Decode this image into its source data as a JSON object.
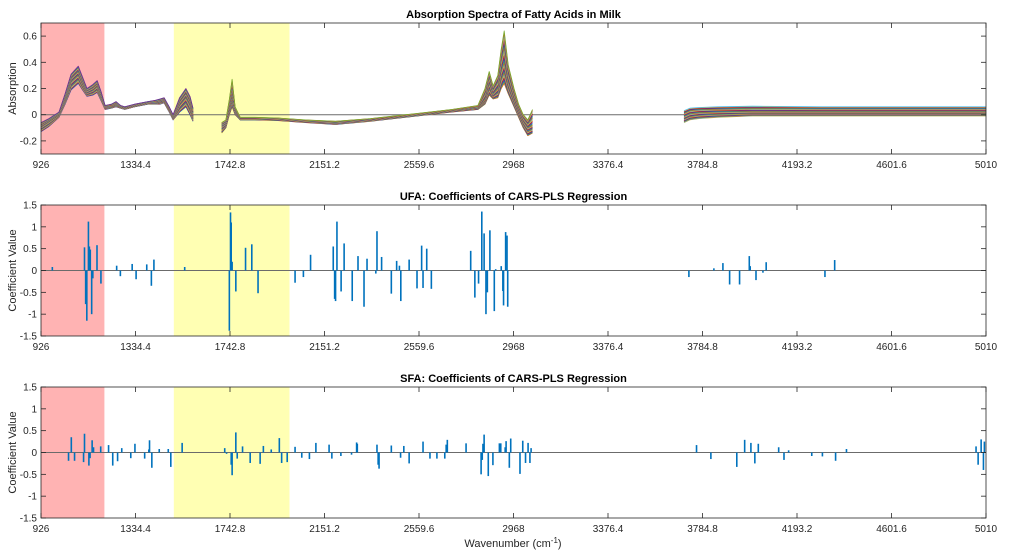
{
  "figure": {
    "xlabel": "Wavenumber (cm",
    "xlabel_sup": "-1",
    "xlabel_end": ")"
  },
  "chart_data": [
    {
      "type": "line",
      "title": "Absorption Spectra of Fatty Acids in Milk",
      "xlabel": "",
      "ylabel": "Absorption",
      "xlim": [
        926,
        5010
      ],
      "ylim": [
        -0.3,
        0.7
      ],
      "xticks": [
        "926",
        "1334.4",
        "1742.8",
        "2151.2",
        "2559.6",
        "2968",
        "3376.4",
        "3784.8",
        "4193.2",
        "4601.6",
        "5010"
      ],
      "yticks": [
        "-0.2",
        "0",
        "0.2",
        "0.4",
        "0.6"
      ],
      "grid": false,
      "highlight_regions": [
        {
          "from": 926,
          "to": 1200,
          "color": "#ffb3b3"
        },
        {
          "from": 1500,
          "to": 2000,
          "color": "#ffffb3"
        }
      ],
      "spectra_count_drawn": 30,
      "segments": [
        {
          "x": [
            926,
            960,
            1004,
            1030,
            1056,
            1087,
            1105,
            1125,
            1150,
            1169,
            1185,
            1203,
            1230,
            1250,
            1270,
            1288,
            1330,
            1388,
            1420,
            1440,
            1458,
            1480,
            1497,
            1525,
            1552,
            1570,
            1583
          ],
          "low": [
            -0.13,
            -0.09,
            -0.02,
            0.08,
            0.19,
            0.24,
            0.19,
            0.14,
            0.15,
            0.17,
            0.11,
            0.04,
            0.05,
            0.06,
            0.05,
            0.04,
            0.06,
            0.08,
            0.08,
            0.08,
            0.09,
            0.02,
            -0.04,
            0.02,
            0.06,
            0.0,
            -0.05
          ],
          "mean": [
            -0.09,
            -0.05,
            0.0,
            0.12,
            0.26,
            0.31,
            0.24,
            0.17,
            0.19,
            0.22,
            0.15,
            0.06,
            0.06,
            0.08,
            0.06,
            0.05,
            0.07,
            0.09,
            0.09,
            0.1,
            0.11,
            0.04,
            -0.02,
            0.08,
            0.14,
            0.08,
            -0.01
          ],
          "high": [
            -0.06,
            -0.03,
            0.02,
            0.16,
            0.31,
            0.37,
            0.29,
            0.2,
            0.23,
            0.26,
            0.18,
            0.07,
            0.08,
            0.1,
            0.07,
            0.06,
            0.08,
            0.1,
            0.11,
            0.12,
            0.13,
            0.06,
            0.0,
            0.13,
            0.2,
            0.14,
            0.05
          ]
        },
        {
          "x": [
            1707,
            1725,
            1740,
            1752,
            1765,
            1787,
            1850,
            1950,
            2068,
            2199,
            2350,
            2553,
            2700,
            2814,
            2845,
            2863,
            2880,
            2900,
            2915,
            2928,
            2945,
            2970,
            2990,
            3010,
            3030,
            3050
          ],
          "low": [
            -0.14,
            -0.1,
            0.0,
            0.06,
            0.0,
            -0.04,
            -0.04,
            -0.045,
            -0.06,
            -0.075,
            -0.05,
            -0.01,
            0.02,
            0.04,
            0.08,
            0.15,
            0.12,
            0.13,
            0.2,
            0.24,
            0.16,
            0.06,
            -0.02,
            -0.1,
            -0.16,
            -0.14
          ],
          "mean": [
            -0.09,
            -0.07,
            0.05,
            0.15,
            0.03,
            -0.03,
            -0.03,
            -0.035,
            -0.05,
            -0.06,
            -0.04,
            0.0,
            0.03,
            0.05,
            0.12,
            0.24,
            0.16,
            0.2,
            0.33,
            0.4,
            0.25,
            0.12,
            0.03,
            -0.05,
            -0.1,
            -0.08
          ],
          "high": [
            -0.06,
            -0.04,
            0.12,
            0.27,
            0.06,
            -0.02,
            -0.02,
            -0.025,
            -0.04,
            -0.05,
            -0.03,
            0.01,
            0.04,
            0.07,
            0.2,
            0.33,
            0.22,
            0.3,
            0.5,
            0.64,
            0.38,
            0.2,
            0.08,
            0.0,
            -0.04,
            0.04
          ]
        },
        {
          "x": [
            3705,
            3730,
            3770,
            3850,
            4000,
            4300,
            4700,
            5010
          ],
          "low": [
            -0.06,
            -0.04,
            -0.03,
            -0.02,
            -0.01,
            -0.01,
            -0.01,
            -0.01
          ],
          "mean": [
            -0.02,
            0.0,
            0.01,
            0.015,
            0.02,
            0.02,
            0.02,
            0.02
          ],
          "high": [
            0.03,
            0.05,
            0.055,
            0.06,
            0.065,
            0.06,
            0.06,
            0.06
          ]
        }
      ]
    },
    {
      "type": "stem",
      "title": "UFA: Coefficients of CARS-PLS Regression",
      "xlabel": "",
      "ylabel": "Coefficient Value",
      "xlim": [
        926,
        5010
      ],
      "ylim": [
        -1.5,
        1.5
      ],
      "xticks": [
        "926",
        "1334.4",
        "1742.8",
        "2151.2",
        "2559.6",
        "2968",
        "3376.4",
        "3784.8",
        "4193.2",
        "4601.6",
        "5010"
      ],
      "yticks": [
        "-1.5",
        "-1",
        "-0.5",
        "0",
        "0.5",
        "1",
        "1.5"
      ],
      "grid": false,
      "color": "#0072bd",
      "highlight_regions": [
        {
          "from": 926,
          "to": 1200,
          "color": "#ffb3b3"
        },
        {
          "from": 1500,
          "to": 2000,
          "color": "#ffffb3"
        }
      ],
      "x": [
        975,
        1114,
        1119,
        1124,
        1131,
        1135,
        1139,
        1145,
        1150,
        1168,
        1185,
        1253,
        1269,
        1320,
        1337,
        1383,
        1403,
        1414,
        1547,
        1740,
        1745,
        1748,
        1752,
        1768,
        1810,
        1837,
        1864,
        2024,
        2060,
        2091,
        2189,
        2195,
        2199,
        2205,
        2223,
        2236,
        2271,
        2296,
        2322,
        2335,
        2373,
        2378,
        2398,
        2440,
        2463,
        2475,
        2481,
        2517,
        2551,
        2571,
        2577,
        2593,
        2613,
        2783,
        2801,
        2817,
        2831,
        2841,
        2849,
        2855,
        2866,
        2885,
        2891,
        2915,
        2922,
        2925,
        2934,
        2940,
        2943,
        3726,
        3834,
        3873,
        3902,
        3945,
        3987,
        3991,
        4016,
        4046,
        4060,
        4314,
        4356
      ],
      "values": [
        0.08,
        0.53,
        -0.77,
        -1.15,
        1.12,
        0.55,
        0.48,
        -1.0,
        -0.18,
        0.58,
        -0.3,
        0.11,
        -0.13,
        0.15,
        -0.2,
        0.14,
        -0.35,
        0.25,
        0.08,
        -1.38,
        1.33,
        1.1,
        0.2,
        -0.48,
        0.52,
        0.6,
        -0.52,
        -0.28,
        -0.15,
        0.36,
        0.55,
        -0.65,
        -0.7,
        1.12,
        -0.48,
        0.62,
        -0.7,
        0.33,
        -0.83,
        0.27,
        -0.07,
        0.9,
        0.31,
        -0.53,
        0.22,
        0.11,
        -0.7,
        0.25,
        -0.41,
        0.57,
        -0.4,
        0.5,
        -0.42,
        0.45,
        -0.62,
        -0.3,
        1.35,
        0.85,
        -1.0,
        -0.5,
        0.92,
        -0.93,
        0.03,
        0.1,
        -0.47,
        -0.8,
        0.88,
        0.8,
        -0.83,
        -0.15,
        0.05,
        0.17,
        -0.32,
        -0.32,
        0.33,
        0.1,
        -0.22,
        -0.05,
        0.19,
        -0.15,
        0.24
      ]
    },
    {
      "type": "stem",
      "title": "SFA: Coefficients of CARS-PLS Regression",
      "xlabel": "Wavenumber (cm-1)",
      "ylabel": "Coefficient Value",
      "xlim": [
        926,
        5010
      ],
      "ylim": [
        -1.5,
        1.5
      ],
      "xticks": [
        "926",
        "1334.4",
        "1742.8",
        "2151.2",
        "2559.6",
        "2968",
        "3376.4",
        "3784.8",
        "4193.2",
        "4601.6",
        "5010"
      ],
      "yticks": [
        "-1.5",
        "-1",
        "-0.5",
        "0",
        "0.5",
        "1",
        "1.5"
      ],
      "grid": false,
      "color": "#0072bd",
      "highlight_regions": [
        {
          "from": 926,
          "to": 1200,
          "color": "#ffb3b3"
        },
        {
          "from": 1500,
          "to": 2000,
          "color": "#ffffb3"
        }
      ],
      "x": [
        1045,
        1057,
        1071,
        1110,
        1114,
        1133,
        1138,
        1147,
        1153,
        1184,
        1218,
        1236,
        1257,
        1275,
        1314,
        1332,
        1374,
        1392,
        1395,
        1405,
        1437,
        1476,
        1487,
        1536,
        1720,
        1728,
        1748,
        1752,
        1768,
        1774,
        1797,
        1830,
        1873,
        1887,
        1921,
        1956,
        1966,
        1990,
        2024,
        2053,
        2086,
        2114,
        2171,
        2183,
        2222,
        2268,
        2290,
        2293,
        2378,
        2383,
        2387,
        2440,
        2480,
        2494,
        2517,
        2577,
        2607,
        2637,
        2671,
        2677,
        2682,
        2763,
        2828,
        2833,
        2836,
        2841,
        2859,
        2879,
        2907,
        2913,
        2932,
        2936,
        2950,
        2956,
        2996,
        3008,
        3020,
        3031,
        3039,
        3044,
        3759,
        3821,
        3933,
        3967,
        3994,
        4011,
        4026,
        4114,
        4137,
        4157,
        4257,
        4303,
        4360,
        4407,
        4967,
        4976,
        4989,
        4999,
        5003
      ],
      "values": [
        -0.19,
        0.35,
        -0.19,
        -0.22,
        0.43,
        -0.3,
        -0.13,
        0.28,
        0.12,
        0.14,
        0.17,
        -0.3,
        -0.2,
        0.1,
        -0.13,
        0.2,
        -0.14,
        0.07,
        0.28,
        -0.35,
        0.08,
        0.08,
        -0.33,
        0.22,
        0.1,
        -0.03,
        -0.28,
        -0.52,
        0.46,
        -0.14,
        0.14,
        -0.24,
        -0.26,
        0.15,
        0.07,
        0.33,
        -0.24,
        -0.22,
        0.13,
        -0.12,
        -0.15,
        0.22,
        0.18,
        -0.14,
        -0.08,
        -0.05,
        0.23,
        0.2,
        0.18,
        -0.28,
        -0.37,
        0.16,
        -0.12,
        0.15,
        -0.25,
        0.25,
        -0.14,
        -0.14,
        -0.14,
        0.18,
        0.29,
        0.21,
        -0.5,
        -0.17,
        0.2,
        0.41,
        -0.54,
        -0.29,
        0.21,
        0.21,
        0.12,
        0.26,
        -0.35,
        0.32,
        -0.49,
        0.27,
        -0.24,
        0.22,
        -0.24,
        0.1,
        0.17,
        -0.15,
        -0.33,
        0.29,
        0.22,
        -0.25,
        0.2,
        0.12,
        -0.17,
        0.05,
        -0.08,
        -0.09,
        -0.19,
        0.08,
        0.14,
        -0.28,
        0.3,
        -0.4,
        0.25
      ]
    }
  ]
}
